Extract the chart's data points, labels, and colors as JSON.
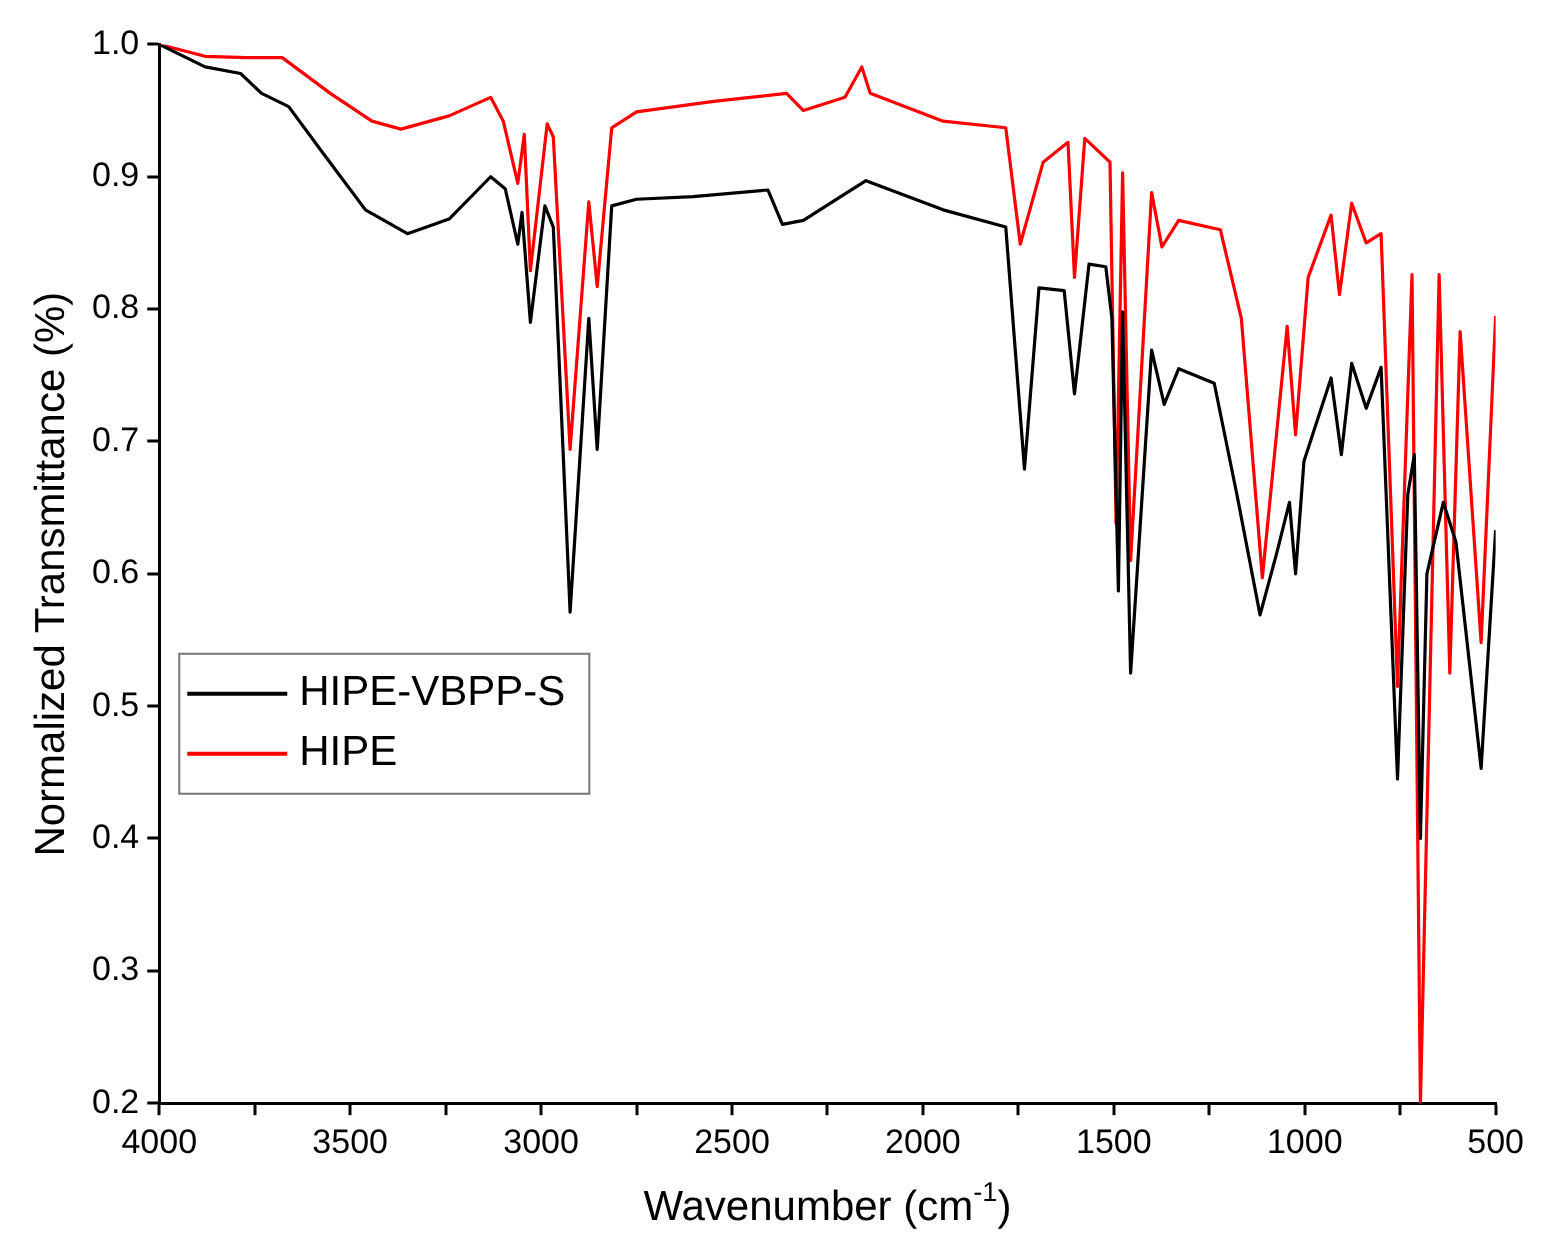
{
  "chart_data": {
    "type": "line",
    "xlabel": "Wavenumber (cm$^{-1}$)",
    "ylabel": "Normalized Transmittance (%)",
    "xlim": [
      4000,
      500
    ],
    "ylim": [
      0.2,
      1.0
    ],
    "xticks": [
      4000,
      {
        "value": 3750,
        "label": null
      },
      3500,
      {
        "value": 3250,
        "label": null
      },
      3000,
      {
        "value": 2750,
        "label": null
      },
      2500,
      {
        "value": 2250,
        "label": null
      },
      2000,
      {
        "value": 1750,
        "label": null
      },
      1500,
      {
        "value": 1250,
        "label": null
      },
      1000,
      {
        "value": 750,
        "label": null
      },
      500
    ],
    "yticks": [
      0.2,
      0.3,
      0.4,
      0.5,
      0.6,
      0.7,
      0.8,
      0.9,
      {
        "value": 1.0,
        "label": "1.0"
      }
    ],
    "grid": false,
    "legend": "left",
    "marker": "none",
    "line_style": "solid",
    "series": [
      {
        "name": "HIPE-VBPP-S",
        "color": "#000000",
        "x": [
          4000,
          3880,
          3787,
          3732,
          3661,
          3569,
          3460,
          3350,
          3241,
          3132,
          3094,
          3061,
          3050,
          3028,
          2990,
          2968,
          2924,
          2875,
          2853,
          2815,
          2750,
          2602,
          2406,
          2368,
          2313,
          2204,
          2149,
          1947,
          1783,
          1734,
          1696,
          1630,
          1603,
          1565,
          1521,
          1505,
          1488,
          1477,
          1456,
          1401,
          1368,
          1330,
          1237,
          1177,
          1117,
          1073,
          1040,
          1024,
          1002,
          931,
          904,
          877,
          839,
          800,
          757,
          730,
          713,
          697,
          680,
          637,
          604,
          538,
          500
        ],
        "values": [
          1.0,
          0.983,
          0.978,
          0.963,
          0.953,
          0.917,
          0.875,
          0.857,
          0.868,
          0.9,
          0.891,
          0.849,
          0.873,
          0.79,
          0.878,
          0.862,
          0.571,
          0.793,
          0.694,
          0.878,
          0.883,
          0.885,
          0.89,
          0.864,
          0.867,
          0.887,
          0.897,
          0.875,
          0.862,
          0.679,
          0.816,
          0.814,
          0.736,
          0.834,
          0.832,
          0.793,
          0.587,
          0.798,
          0.525,
          0.769,
          0.728,
          0.755,
          0.744,
          0.659,
          0.569,
          0.616,
          0.654,
          0.6,
          0.685,
          0.748,
          0.69,
          0.759,
          0.725,
          0.756,
          0.445,
          0.66,
          0.69,
          0.4,
          0.6,
          0.654,
          0.624,
          0.453,
          0.633
        ]
      },
      {
        "name": "HIPE",
        "color": "#ff0000",
        "x": [
          4000,
          3880,
          3771,
          3678,
          3552,
          3443,
          3367,
          3241,
          3132,
          3099,
          3061,
          3044,
          3028,
          2984,
          2968,
          2924,
          2875,
          2853,
          2815,
          2750,
          2548,
          2357,
          2313,
          2204,
          2160,
          2138,
          1947,
          1783,
          1745,
          1685,
          1620,
          1603,
          1576,
          1510,
          1494,
          1477,
          1456,
          1401,
          1374,
          1330,
          1221,
          1166,
          1111,
          1046,
          1024,
          991,
          931,
          909,
          877,
          839,
          800,
          757,
          719,
          697,
          648,
          620,
          593,
          538,
          500
        ],
        "values": [
          1.0,
          0.991,
          0.99,
          0.99,
          0.963,
          0.942,
          0.936,
          0.946,
          0.96,
          0.942,
          0.895,
          0.932,
          0.829,
          0.94,
          0.93,
          0.694,
          0.881,
          0.817,
          0.937,
          0.949,
          0.957,
          0.963,
          0.95,
          0.96,
          0.983,
          0.963,
          0.942,
          0.937,
          0.849,
          0.911,
          0.926,
          0.824,
          0.929,
          0.911,
          0.638,
          0.903,
          0.61,
          0.888,
          0.847,
          0.867,
          0.86,
          0.793,
          0.597,
          0.787,
          0.705,
          0.824,
          0.871,
          0.811,
          0.88,
          0.85,
          0.857,
          0.515,
          0.826,
          0.2,
          0.826,
          0.525,
          0.783,
          0.548,
          0.795
        ]
      }
    ]
  }
}
